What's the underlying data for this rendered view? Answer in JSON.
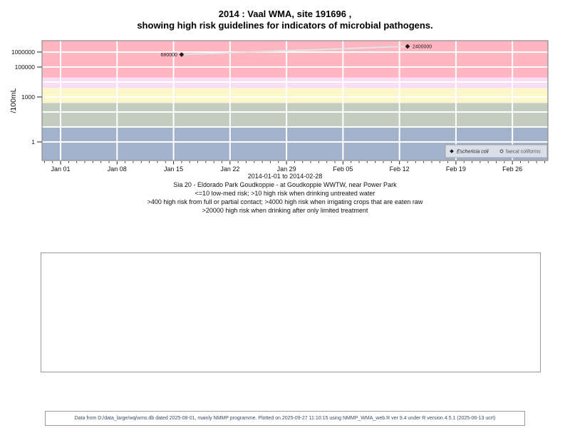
{
  "title": {
    "line1": "2014 : Vaal WMA, site 191696 ,",
    "line2": "showing high risk guidelines for indicators of microbial pathogens."
  },
  "chart_data": {
    "type": "scatter",
    "title": "2014 : Vaal WMA, site 191696 , showing high risk guidelines for indicators of microbial pathogens.",
    "ylabel": "/100mL",
    "y_axis": {
      "scale": "log",
      "log_min": -1.24,
      "log_max": 6.76,
      "ticks": [
        {
          "value": 1,
          "label": "1"
        },
        {
          "value": 1000,
          "label": "1000"
        },
        {
          "value": 100000,
          "label": "100000"
        },
        {
          "value": 1000000,
          "label": "1000000"
        }
      ],
      "gridline_values": [
        1,
        10,
        100,
        1000,
        10000,
        100000,
        1000000
      ]
    },
    "x_axis": {
      "range_label": "2014-01-01 to 2014-02-28",
      "min_day": -2.3,
      "max_day": 60.4,
      "major_ticks": [
        {
          "day": 0,
          "label": "Jan 01"
        },
        {
          "day": 7,
          "label": "Jan 08"
        },
        {
          "day": 14,
          "label": "Jan 15"
        },
        {
          "day": 21,
          "label": "Jan 22"
        },
        {
          "day": 28,
          "label": "Jan 29"
        },
        {
          "day": 35,
          "label": "Feb 05"
        },
        {
          "day": 42,
          "label": "Feb 12"
        },
        {
          "day": 49,
          "label": "Feb 19"
        },
        {
          "day": 56,
          "label": "Feb 26"
        }
      ],
      "minor_tick_every_days": 1
    },
    "grid_color": "#ffffff",
    "risk_bands": [
      {
        "range": "<=10 low-med risk",
        "from": null,
        "to": 10,
        "color": "#A3B2CB"
      },
      {
        "range": ">10 drinking untreated water",
        "from": 10,
        "to": 400,
        "color": "#C2CCBF"
      },
      {
        "range": ">400 full or partial contact",
        "from": 400,
        "to": 4000,
        "color": "#FBF7CA"
      },
      {
        "range": ">4000 irrigating raw crops",
        "from": 4000,
        "to": 20000,
        "color": "#F9DDF6"
      },
      {
        "range": ">20000 limited treatment",
        "from": 20000,
        "to": null,
        "color": "#FFB6C1"
      }
    ],
    "series": [
      {
        "name": "Eschericia coli",
        "marker": "diamond",
        "marker_color": "#1a1a1a",
        "line_color": "#E2E2E2",
        "points": [
          {
            "day": 15,
            "value": 680000,
            "label": "680000",
            "label_side": "left"
          },
          {
            "day": 43,
            "value": 2400000,
            "label": "2400000",
            "label_side": "right"
          }
        ]
      },
      {
        "name": "faecal coliforms",
        "marker": "open-circle",
        "marker_color": "#333333",
        "line_color": "#E2E2E2",
        "points": []
      }
    ],
    "legend": {
      "position": "bottom-right",
      "background": "#DAE0EA",
      "items": [
        {
          "label": "Eschericia coli",
          "marker": "diamond",
          "italic": true
        },
        {
          "label": "faecal coliforms",
          "marker": "open-circle",
          "italic": false
        }
      ]
    }
  },
  "captions": [
    "2014-01-01 to 2014-02-28",
    "Sia 20 - Eldorado Park Goudkoppie - at Goudkoppie WWTW, near Power Park",
    "<=10 low-med risk; >10 high risk when drinking untreated water",
    ">400 high risk from full or partial contact; >4000 high risk when irrigating crops that are eaten raw",
    ">20000 high risk when drinking after only limited treatment"
  ],
  "footer": {
    "text": "Data from D:/data_large/wq/wms.db dated 2025-08-01, mainly NMMP programme. Plotted on 2025-09-27 11:10:15 using NMMP_WMA_web.R ver 9.4 under R version 4.5.1 (2025-06-13 ucrt)"
  }
}
